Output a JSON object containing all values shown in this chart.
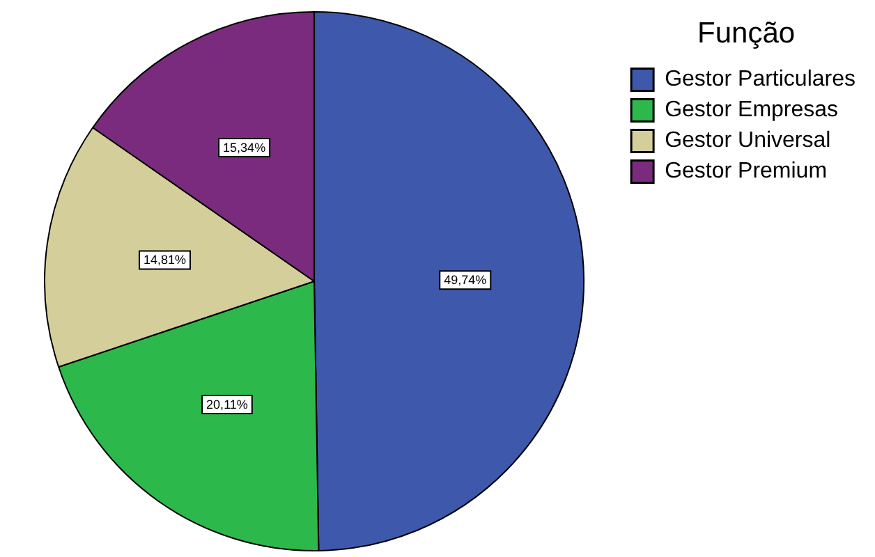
{
  "chart_data": {
    "type": "pie",
    "legend_title": "Função",
    "categories": [
      "Gestor Particulares",
      "Gestor Empresas",
      "Gestor Universal",
      "Gestor Premium"
    ],
    "values": [
      49.74,
      20.11,
      14.81,
      15.34
    ],
    "colors": [
      "#3e58ac",
      "#2db84b",
      "#d4cf9a",
      "#7b2b7e"
    ],
    "value_labels": [
      "49,74%",
      "20,11%",
      "14,81%",
      "15,34%"
    ],
    "legend": "top right"
  }
}
